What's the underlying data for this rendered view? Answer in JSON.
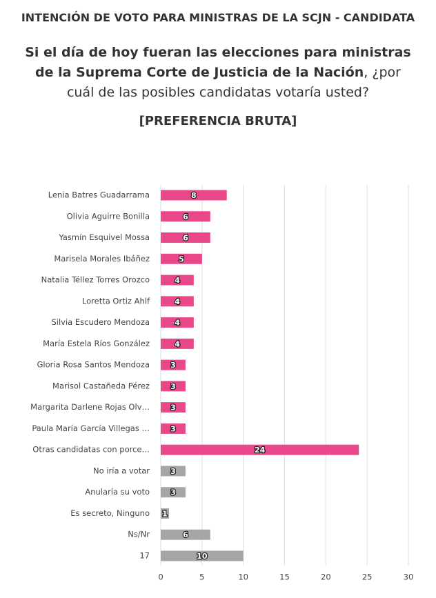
{
  "chart_data": {
    "type": "barh",
    "title": "INTENCIÓN DE VOTO PARA MINISTRAS DE LA SCJN - CANDIDATA",
    "question_bold": "Si el día de hoy fueran las elecciones para ministras de la Suprema Corte de Justicia de la Nación",
    "question_rest": ", ¿por cuál de las posibles candidatas votaría usted?",
    "subtitle": "[PREFERENCIA BRUTA]",
    "categories": [
      "Lenia Batres Guadarrama",
      "Olivia Aguirre Bonilla",
      "Yasmín Esquivel Mossa",
      "Marisela Morales Ibáñez",
      "Natalia Téllez Torres Orozco",
      "Loretta Ortiz Ahlf",
      "Silvia Escudero Mendoza",
      "María Estela Ríos González",
      "Gloria Rosa Santos Mendoza",
      "Marisol Castañeda Pérez",
      "Margarita Darlene Rojas Olv…",
      "Paula María García Villegas …",
      "Otras candidatas con porce…",
      "No iría a votar",
      "Anularía su voto",
      "Es secreto, Ninguno",
      "Ns/Nr",
      "17"
    ],
    "values": [
      8,
      6,
      6,
      5,
      4,
      4,
      4,
      4,
      3,
      3,
      3,
      3,
      24,
      3,
      3,
      1,
      6,
      10
    ],
    "colors": [
      "#e8488a",
      "#e8488a",
      "#e8488a",
      "#e8488a",
      "#e8488a",
      "#e8488a",
      "#e8488a",
      "#e8488a",
      "#e8488a",
      "#e8488a",
      "#e8488a",
      "#e8488a",
      "#e8488a",
      "#a6a6a6",
      "#a6a6a6",
      "#a6a6a6",
      "#a6a6a6",
      "#a6a6a6"
    ],
    "xlim": [
      0,
      30
    ],
    "xticks": [
      0,
      5,
      10,
      15,
      20,
      25,
      30
    ],
    "grid": true
  }
}
